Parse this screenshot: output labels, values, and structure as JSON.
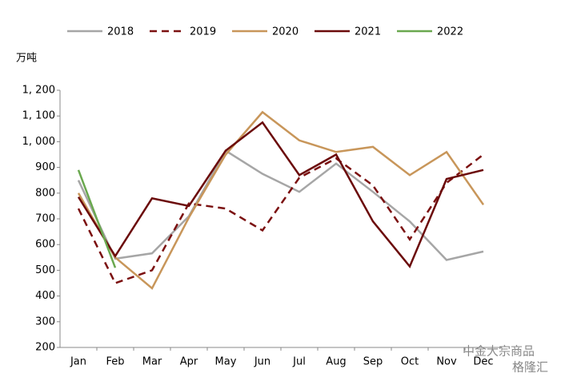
{
  "chart_data": {
    "type": "line",
    "y_axis_label": "万吨",
    "categories": [
      "Jan",
      "Feb",
      "Mar",
      "Apr",
      "May",
      "Jun",
      "Jul",
      "Aug",
      "Sep",
      "Oct",
      "Nov",
      "Dec"
    ],
    "series": [
      {
        "name": "2018",
        "color": "#a6a6a6",
        "dashed": false,
        "values": [
          850,
          545,
          566,
          710,
          965,
          875,
          805,
          915,
          805,
          690,
          540,
          573
        ]
      },
      {
        "name": "2019",
        "color": "#7b1010",
        "dashed": true,
        "values": [
          740,
          450,
          500,
          760,
          740,
          655,
          860,
          935,
          830,
          620,
          840,
          950
        ]
      },
      {
        "name": "2020",
        "color": "#c8965a",
        "dashed": false,
        "values": [
          800,
          550,
          430,
          705,
          950,
          1115,
          1005,
          960,
          980,
          870,
          960,
          755
        ]
      },
      {
        "name": "2021",
        "color": "#6b0a0a",
        "dashed": false,
        "values": [
          785,
          555,
          780,
          750,
          965,
          1075,
          870,
          950,
          690,
          515,
          855,
          890
        ]
      },
      {
        "name": "2022",
        "color": "#6aa84f",
        "dashed": false,
        "values": [
          890,
          510,
          null,
          null,
          null,
          null,
          null,
          null,
          null,
          null,
          null,
          null
        ]
      }
    ],
    "ylim": [
      200,
      1200
    ],
    "yticks": [
      200,
      300,
      400,
      500,
      600,
      700,
      800,
      900,
      {
        "value": 1000,
        "label": "1, 000"
      },
      {
        "value": 1100,
        "label": "1, 100"
      },
      {
        "value": 1200,
        "label": "1, 200"
      }
    ],
    "legend": "top",
    "watermark": [
      "中金大宗商品",
      "格隆汇"
    ]
  }
}
